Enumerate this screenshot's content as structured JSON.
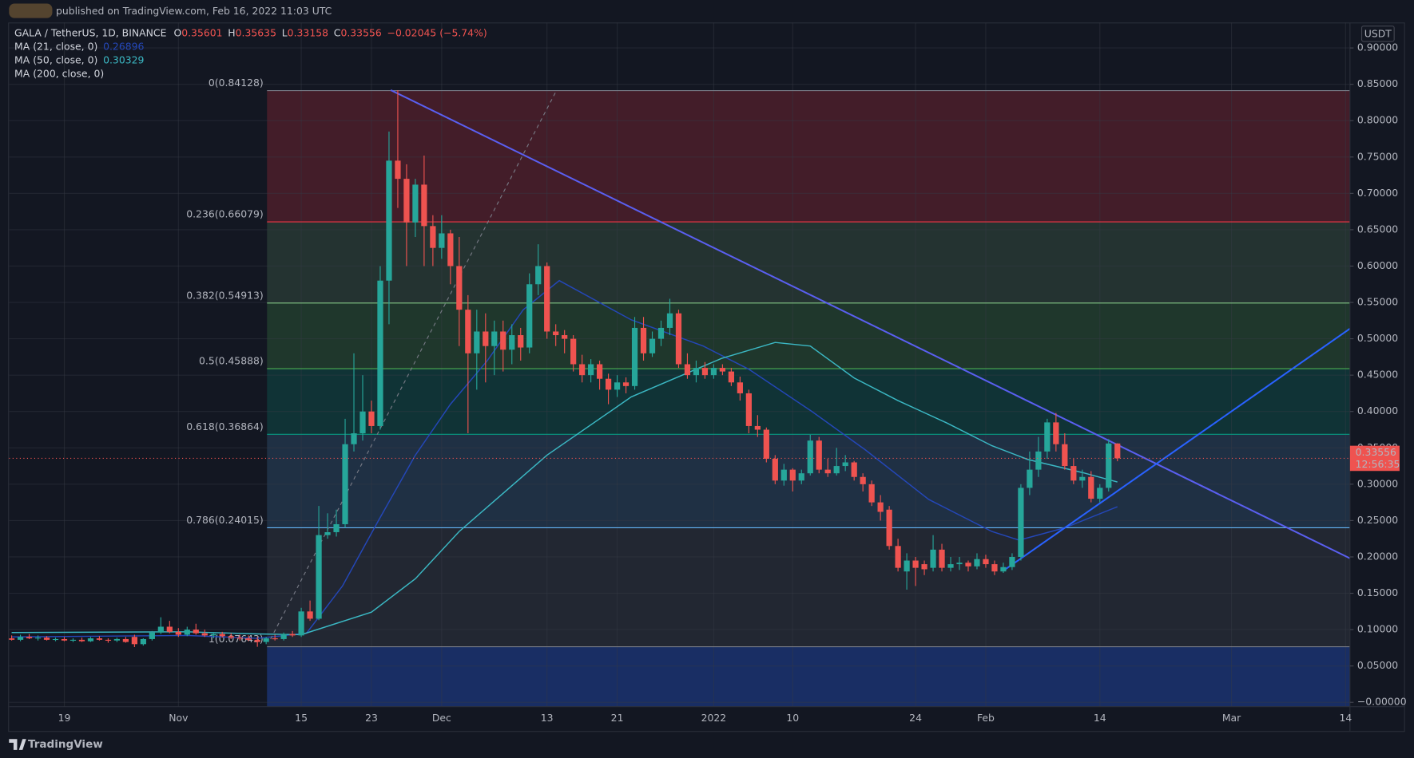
{
  "header": {
    "published": "published on TradingView.com, Feb 16, 2022 11:03 UTC"
  },
  "chart_data": {
    "type": "candlestick",
    "symbol": "GALA / TetherUS, 1D, BINANCE",
    "ohlc_legend": [
      {
        "key": "O",
        "value": "0.35601"
      },
      {
        "key": "H",
        "value": "0.35635"
      },
      {
        "key": "L",
        "value": "0.33158"
      },
      {
        "key": "C",
        "value": "0.33556"
      }
    ],
    "change": "−0.02045 (−5.74%)",
    "currency": "USDT",
    "countdown": "12:56:35",
    "up_color": "#26a69a",
    "down_color": "#ef5350",
    "open": [
      0.088,
      0.086,
      0.09,
      0.088,
      0.089,
      0.086,
      0.087,
      0.085,
      0.086,
      0.084,
      0.088,
      0.086,
      0.085,
      0.087,
      0.09,
      0.08,
      0.087,
      0.096,
      0.104,
      0.097,
      0.093,
      0.1,
      0.095,
      0.092,
      0.094,
      0.091,
      0.089,
      0.088,
      0.086,
      0.083,
      0.088,
      0.087,
      0.094,
      0.092,
      0.125,
      0.115,
      0.23,
      0.234,
      0.245,
      0.355,
      0.37,
      0.4,
      0.38,
      0.58,
      0.745,
      0.72,
      0.66,
      0.712,
      0.655,
      0.625,
      0.645,
      0.6,
      0.54,
      0.48,
      0.51,
      0.49,
      0.51,
      0.485,
      0.505,
      0.488,
      0.575,
      0.6,
      0.51,
      0.505,
      0.5,
      0.465,
      0.45,
      0.465,
      0.445,
      0.43,
      0.44,
      0.435,
      0.515,
      0.48,
      0.5,
      0.515,
      0.535,
      0.465,
      0.45,
      0.46,
      0.45,
      0.46,
      0.455,
      0.44,
      0.425,
      0.38,
      0.375,
      0.335,
      0.305,
      0.32,
      0.305,
      0.315,
      0.36,
      0.32,
      0.315,
      0.325,
      0.33,
      0.31,
      0.3,
      0.275,
      0.265,
      0.215,
      0.18,
      0.195,
      0.19,
      0.185,
      0.21,
      0.185,
      0.19,
      0.192,
      0.187,
      0.197,
      0.19,
      0.18,
      0.186,
      0.2,
      0.295,
      0.32,
      0.345,
      0.385,
      0.355,
      0.325,
      0.305,
      0.31,
      0.28,
      0.295,
      0.35601
    ],
    "high": [
      0.092,
      0.093,
      0.094,
      0.092,
      0.091,
      0.089,
      0.09,
      0.088,
      0.089,
      0.09,
      0.091,
      0.088,
      0.089,
      0.09,
      0.093,
      0.088,
      0.098,
      0.117,
      0.112,
      0.102,
      0.104,
      0.108,
      0.1,
      0.096,
      0.097,
      0.095,
      0.093,
      0.092,
      0.09,
      0.09,
      0.093,
      0.096,
      0.098,
      0.13,
      0.14,
      0.27,
      0.26,
      0.265,
      0.39,
      0.48,
      0.45,
      0.415,
      0.6,
      0.785,
      0.842,
      0.74,
      0.72,
      0.752,
      0.67,
      0.67,
      0.65,
      0.64,
      0.56,
      0.54,
      0.535,
      0.525,
      0.525,
      0.52,
      0.515,
      0.59,
      0.63,
      0.605,
      0.52,
      0.512,
      0.505,
      0.478,
      0.472,
      0.47,
      0.452,
      0.45,
      0.447,
      0.53,
      0.53,
      0.51,
      0.525,
      0.555,
      0.54,
      0.48,
      0.47,
      0.468,
      0.465,
      0.465,
      0.46,
      0.448,
      0.43,
      0.395,
      0.378,
      0.34,
      0.328,
      0.322,
      0.32,
      0.368,
      0.365,
      0.335,
      0.35,
      0.34,
      0.332,
      0.315,
      0.305,
      0.285,
      0.27,
      0.225,
      0.205,
      0.2,
      0.195,
      0.23,
      0.218,
      0.2,
      0.2,
      0.195,
      0.205,
      0.203,
      0.195,
      0.192,
      0.205,
      0.3,
      0.345,
      0.365,
      0.39,
      0.398,
      0.37,
      0.335,
      0.32,
      0.318,
      0.3,
      0.362,
      0.35635
    ],
    "low": [
      0.085,
      0.084,
      0.087,
      0.085,
      0.085,
      0.084,
      0.084,
      0.083,
      0.083,
      0.083,
      0.085,
      0.082,
      0.083,
      0.082,
      0.076,
      0.078,
      0.085,
      0.094,
      0.095,
      0.09,
      0.091,
      0.093,
      0.09,
      0.088,
      0.089,
      0.087,
      0.085,
      0.084,
      0.0764,
      0.08,
      0.085,
      0.085,
      0.09,
      0.09,
      0.112,
      0.113,
      0.225,
      0.228,
      0.24,
      0.345,
      0.36,
      0.37,
      0.375,
      0.52,
      0.68,
      0.6,
      0.64,
      0.6,
      0.6,
      0.61,
      0.575,
      0.49,
      0.37,
      0.43,
      0.44,
      0.45,
      0.455,
      0.465,
      0.47,
      0.48,
      0.56,
      0.5,
      0.49,
      0.48,
      0.455,
      0.44,
      0.44,
      0.43,
      0.41,
      0.42,
      0.425,
      0.43,
      0.47,
      0.475,
      0.49,
      0.505,
      0.46,
      0.445,
      0.44,
      0.445,
      0.445,
      0.45,
      0.435,
      0.415,
      0.37,
      0.365,
      0.33,
      0.3,
      0.298,
      0.29,
      0.3,
      0.312,
      0.315,
      0.31,
      0.312,
      0.318,
      0.305,
      0.29,
      0.27,
      0.25,
      0.21,
      0.18,
      0.155,
      0.16,
      0.175,
      0.18,
      0.18,
      0.18,
      0.182,
      0.18,
      0.183,
      0.185,
      0.175,
      0.178,
      0.182,
      0.195,
      0.285,
      0.31,
      0.335,
      0.345,
      0.32,
      0.3,
      0.295,
      0.275,
      0.275,
      0.29,
      0.33158
    ],
    "close": [
      0.086,
      0.09,
      0.088,
      0.089,
      0.086,
      0.087,
      0.085,
      0.086,
      0.084,
      0.088,
      0.086,
      0.085,
      0.087,
      0.083,
      0.08,
      0.087,
      0.096,
      0.104,
      0.097,
      0.093,
      0.1,
      0.095,
      0.092,
      0.094,
      0.091,
      0.089,
      0.088,
      0.086,
      0.083,
      0.088,
      0.087,
      0.094,
      0.092,
      0.125,
      0.115,
      0.23,
      0.234,
      0.245,
      0.355,
      0.37,
      0.4,
      0.38,
      0.58,
      0.745,
      0.72,
      0.66,
      0.712,
      0.655,
      0.625,
      0.645,
      0.6,
      0.54,
      0.48,
      0.51,
      0.49,
      0.51,
      0.485,
      0.505,
      0.488,
      0.575,
      0.6,
      0.51,
      0.505,
      0.5,
      0.465,
      0.45,
      0.465,
      0.445,
      0.43,
      0.44,
      0.435,
      0.515,
      0.48,
      0.5,
      0.515,
      0.535,
      0.465,
      0.45,
      0.46,
      0.45,
      0.46,
      0.455,
      0.44,
      0.425,
      0.38,
      0.375,
      0.335,
      0.305,
      0.32,
      0.305,
      0.315,
      0.36,
      0.32,
      0.315,
      0.325,
      0.33,
      0.31,
      0.3,
      0.275,
      0.262,
      0.215,
      0.185,
      0.195,
      0.185,
      0.183,
      0.21,
      0.185,
      0.19,
      0.192,
      0.187,
      0.197,
      0.19,
      0.18,
      0.186,
      0.2,
      0.295,
      0.32,
      0.345,
      0.385,
      0.355,
      0.325,
      0.305,
      0.31,
      0.28,
      0.295,
      0.356,
      0.33556
    ],
    "xlim": [
      -0.3,
      152.5
    ],
    "xticks": [
      {
        "value": 6,
        "label": "19"
      },
      {
        "value": 19,
        "label": "Nov"
      },
      {
        "value": 33,
        "label": "15"
      },
      {
        "value": 41,
        "label": "23"
      },
      {
        "value": 49,
        "label": "Dec"
      },
      {
        "value": 61,
        "label": "13"
      },
      {
        "value": 69,
        "label": "21"
      },
      {
        "value": 80,
        "label": "2022"
      },
      {
        "value": 89,
        "label": "10"
      },
      {
        "value": 103,
        "label": "24"
      },
      {
        "value": 111,
        "label": "Feb"
      },
      {
        "value": 124,
        "label": "14"
      },
      {
        "value": 139,
        "label": "Mar"
      },
      {
        "value": 152,
        "label": "14"
      }
    ],
    "ylim": [
      -0.006,
      0.935
    ],
    "yticks": [
      {
        "value": 0.9,
        "label": "0.90000"
      },
      {
        "value": 0.85,
        "label": "0.85000"
      },
      {
        "value": 0.8,
        "label": "0.80000"
      },
      {
        "value": 0.75,
        "label": "0.75000"
      },
      {
        "value": 0.7,
        "label": "0.70000"
      },
      {
        "value": 0.65,
        "label": "0.65000"
      },
      {
        "value": 0.6,
        "label": "0.60000"
      },
      {
        "value": 0.55,
        "label": "0.55000"
      },
      {
        "value": 0.5,
        "label": "0.50000"
      },
      {
        "value": 0.45,
        "label": "0.45000"
      },
      {
        "value": 0.4,
        "label": "0.40000"
      },
      {
        "value": 0.35,
        "label": "0.35000"
      },
      {
        "value": 0.3,
        "label": "0.30000"
      },
      {
        "value": 0.25,
        "label": "0.25000"
      },
      {
        "value": 0.2,
        "label": "0.20000"
      },
      {
        "value": 0.15,
        "label": "0.15000"
      },
      {
        "value": 0.1,
        "label": "0.10000"
      },
      {
        "value": 0.05,
        "label": "0.05000"
      },
      {
        "value": 0,
        "label": "−0.00000"
      }
    ],
    "grid": true,
    "indicators": [
      {
        "name": "MA (21, close, 0)",
        "value_label": "0.26896",
        "color": "#2447b8",
        "x": [
          0,
          20,
          28,
          33.6,
          37.7,
          41.8,
          46,
          50,
          54.2,
          58.3,
          62.4,
          70.6,
          78.8,
          84,
          91.2,
          97.3,
          104.5,
          111.7,
          114.8,
          120,
          126
        ],
        "values": [
          0.09,
          0.092,
          0.088,
          0.095,
          0.16,
          0.25,
          0.34,
          0.41,
          0.47,
          0.54,
          0.58,
          0.526,
          0.49,
          0.458,
          0.4,
          0.347,
          0.279,
          0.235,
          0.223,
          0.24,
          0.269
        ]
      },
      {
        "name": "MA (50, close, 0)",
        "value_label": "0.30329",
        "color": "#3bb8c4",
        "x": [
          0,
          20,
          28,
          33,
          41,
          46,
          51,
          61,
          70.6,
          80.9,
          87,
          91,
          96,
          101,
          106.6,
          111.7,
          115.8,
          122,
          126
        ],
        "values": [
          0.096,
          0.097,
          0.094,
          0.093,
          0.124,
          0.17,
          0.235,
          0.34,
          0.42,
          0.473,
          0.495,
          0.49,
          0.446,
          0.415,
          0.384,
          0.353,
          0.334,
          0.316,
          0.303
        ]
      },
      {
        "name": "MA (200, close, 0)"
      }
    ],
    "fib": {
      "x_start": 29.1,
      "levels": [
        {
          "label": "0(0.84128)",
          "value": 0.84128,
          "color": "#787b86",
          "fill": "rgba(242,54,69,0.22)"
        },
        {
          "label": "0.236(0.66079)",
          "value": 0.66079,
          "color": "#f23645",
          "fill": "rgba(129,199,132,0.16)"
        },
        {
          "label": "0.382(0.54913)",
          "value": 0.54913,
          "color": "#81c784",
          "fill": "rgba(76,175,80,0.22)"
        },
        {
          "label": "0.5(0.45888)",
          "value": 0.45888,
          "color": "#4caf50",
          "fill": "rgba(8,153,129,0.22)"
        },
        {
          "label": "0.618(0.36864)",
          "value": 0.36864,
          "color": "#089981",
          "fill": "rgba(100,181,246,0.16)"
        },
        {
          "label": "0.786(0.24015)",
          "value": 0.24015,
          "color": "#64b5f6",
          "fill": "rgba(120,123,134,0.16)"
        },
        {
          "label": "1(0.07643)",
          "value": 0.07643,
          "color": "#787b86",
          "fill": "rgba(41,98,255,0.3)"
        }
      ]
    },
    "trendlines": [
      {
        "color": "#5a5ff0",
        "x": [
          43.2,
          152.5
        ],
        "values": [
          0.842,
          0.198
        ]
      },
      {
        "color": "#2962ff",
        "x": [
          113,
          152.5
        ],
        "values": [
          0.181,
          0.514
        ]
      },
      {
        "color": "#787b86",
        "dashed": true,
        "x": [
          29.5,
          62.1
        ],
        "values": [
          0.087,
          0.842
        ]
      }
    ]
  },
  "footer": {
    "brand": "TradingView"
  }
}
